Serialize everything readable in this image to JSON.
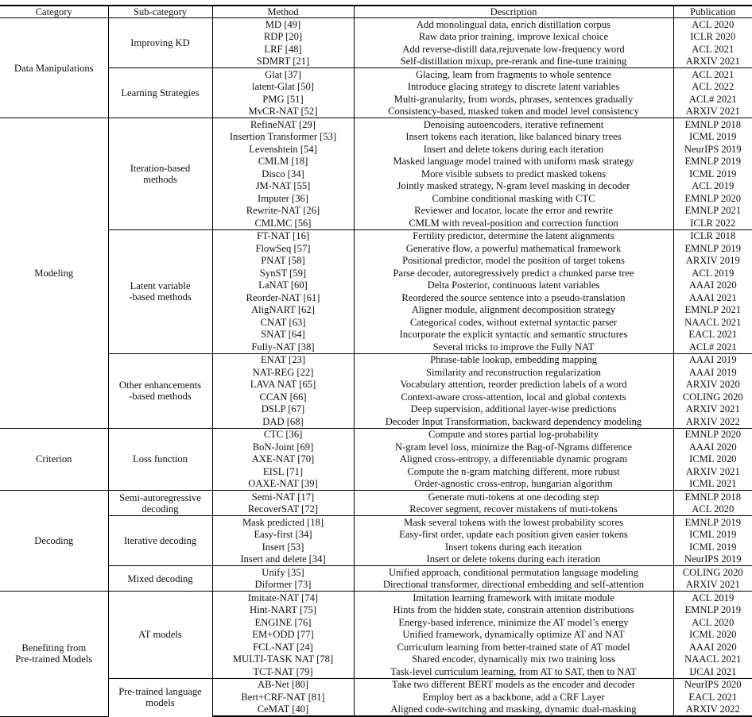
{
  "headers": {
    "category": "Category",
    "subcategory": "Sub-category",
    "method": "Method",
    "description": "Description",
    "publication": "Publication"
  },
  "categories": [
    {
      "name": "Data Manipulations",
      "subcategories": [
        {
          "name": "Improving KD",
          "methods": [
            {
              "method": "MD [49]",
              "description": "Add monolingual data, enrich distillation corpus",
              "publication": "ACL 2020"
            },
            {
              "method": "RDP [20]",
              "description": "Raw data prior training, improve lexical choice",
              "publication": "ICLR 2020"
            },
            {
              "method": "LRF [48]",
              "description": "Add reverse-distill data,rejuvenate low-frequency word",
              "publication": "ACL 2021"
            },
            {
              "method": "SDMRT [21]",
              "description": "Self-distillation mixup, pre-rerank and fine-tune training",
              "publication": "ARXIV 2021"
            }
          ]
        },
        {
          "name": "Learning Strategies",
          "methods": [
            {
              "method": "Glat [37]",
              "description": "Glacing, learn from fragments to whole sentence",
              "publication": "ACL 2021"
            },
            {
              "method": "latent-Glat [50]",
              "description": "Introduce glacing strategy to discrete latent variables",
              "publication": "ACL 2022"
            },
            {
              "method": "PMG [51]",
              "description": "Multi-granularity, from words, phrases, sentences gradually",
              "publication": "ACL# 2021"
            },
            {
              "method": "MvCR-NAT [52]",
              "description": "Consistency-based, masked token and model level consistency",
              "publication": "ARXIV 2021"
            }
          ]
        }
      ]
    },
    {
      "name": "Modeling",
      "subcategories": [
        {
          "name": "Iteration-based\nmethods",
          "methods": [
            {
              "method": "RefineNAT [29]",
              "description": "Denoising autoencoders, iterative refinement",
              "publication": "EMNLP 2018"
            },
            {
              "method": "Insertion Transformer [53]",
              "description": "Insert tokens each iteration, like balanced binary trees",
              "publication": "ICML 2019"
            },
            {
              "method": "Levenshtein [54]",
              "description": "Insert and delete tokens during each iteration",
              "publication": "NeurIPS 2019"
            },
            {
              "method": "CMLM [18]",
              "description": "Masked language model trained with uniform mask strategy",
              "publication": "EMNLP 2019"
            },
            {
              "method": "Disco [34]",
              "description": "More visible subsets to predict masked tokens",
              "publication": "ICML 2019"
            },
            {
              "method": "JM-NAT [55]",
              "description": "Jointly masked strategy, N-gram level masking in decoder",
              "publication": "ACL 2019"
            },
            {
              "method": "Imputer [36]",
              "description": "Combine conditional masking with CTC",
              "publication": "EMNLP 2020"
            },
            {
              "method": "Rewrite-NAT [26]",
              "description": "Reviewer and locator, locate the error and rewrite",
              "publication": "EMNLP 2021"
            },
            {
              "method": "CMLMC [56]",
              "description": "CMLM with reveal-position and correction function",
              "publication": "ICLR 2022"
            }
          ]
        },
        {
          "name": "Latent variable\n-based methods",
          "methods": [
            {
              "method": "FT-NAT [16]",
              "description": "Fertility predictor, determine the latent alignments",
              "publication": "ICLR 2018"
            },
            {
              "method": "FlowSeq [57]",
              "description": "Generative flow, a powerful mathematical framework",
              "publication": "EMNLP 2019"
            },
            {
              "method": "PNAT [58]",
              "description": "Positional predictor, model the position of target tokens",
              "publication": "ARXIV 2019"
            },
            {
              "method": "SynST [59]",
              "description": "Parse decoder, autoregressively predict a chunked parse tree",
              "publication": "ACL 2019"
            },
            {
              "method": "LaNAT [60]",
              "description": "Delta Posterior, continuous latent variables",
              "publication": "AAAI 2020"
            },
            {
              "method": "Reorder-NAT [61]",
              "description": "Reordered the source sentence into a pseudo-translation",
              "publication": "AAAI 2021"
            },
            {
              "method": "AligNART [62]",
              "description": "Aligner module, alignment decomposition strategy",
              "publication": "EMNLP 2021"
            },
            {
              "method": "CNAT [63]",
              "description": "Categorical codes, without external syntactic parser",
              "publication": "NAACL 2021"
            },
            {
              "method": "SNAT [64]",
              "description": "Incorporate the explicit syntactic and semantic structures",
              "publication": "EACL 2021"
            },
            {
              "method": "Fully-NAT [38]",
              "description": "Several tricks to improve the Fully NAT",
              "publication": "ACL# 2021"
            }
          ]
        },
        {
          "name": "Other enhancements\n-based methods",
          "methods": [
            {
              "method": "ENAT [23]",
              "description": "Phrase-table lookup, embedding mapping",
              "publication": "AAAI 2019"
            },
            {
              "method": "NAT-REG [22]",
              "description": "Similarity and reconstruction regularization",
              "publication": "AAAI 2019"
            },
            {
              "method": "LAVA NAT [65]",
              "description": "Vocabulary attention, reorder prediction labels of a word",
              "publication": "ARXIV 2020"
            },
            {
              "method": "CCAN [66]",
              "description": "Context-aware cross-attention, local and global contexts",
              "publication": "COLING 2020"
            },
            {
              "method": "DSLP [67]",
              "description": "Deep supervision, additional layer-wise predictions",
              "publication": "ARXIV 2021"
            },
            {
              "method": "DAD [68]",
              "description": "Decoder Input Transformation, backward dependency modeling",
              "publication": "ARXIV 2022"
            }
          ]
        }
      ]
    },
    {
      "name": "Criterion",
      "subcategories": [
        {
          "name": "Loss function",
          "methods": [
            {
              "method": "CTC [36]",
              "description": "Compute and stores partial log-probability",
              "publication": "EMNLP 2020"
            },
            {
              "method": "BoN-Joint [69]",
              "description": "N-gram level loss, minimize the Bag-of-Ngrams difference",
              "publication": "AAAI 2020"
            },
            {
              "method": "AXE-NAT [70]",
              "description": "Aligned cross-entropy, a differentiable dynamic program",
              "publication": "ICML 2020"
            },
            {
              "method": "EISL [71]",
              "description": "Compute the n-gram matching different, more rubust",
              "publication": "ARXIV 2021"
            },
            {
              "method": "OAXE-NAT [39]",
              "description": "Order-agnostic cross-entrop, hungarian algorithm",
              "publication": "ICML 2021"
            }
          ]
        }
      ]
    },
    {
      "name": "Decoding",
      "subcategories": [
        {
          "name": "Semi-autoregressive\ndecoding",
          "methods": [
            {
              "method": "Semi-NAT [17]",
              "description": "Generate muti-tokens at one decoding step",
              "publication": "EMNLP 2018"
            },
            {
              "method": "RecoverSAT [72]",
              "description": "Recover segment, recover mistakens of muti-tokens",
              "publication": "ACL 2020"
            }
          ]
        },
        {
          "name": "Iterative decoding",
          "methods": [
            {
              "method": "Mask predicted [18]",
              "description": "Mask several tokens with the lowest probability scores",
              "publication": "EMNLP 2019"
            },
            {
              "method": "Easy-first [34]",
              "description": "Easy-first order, update each position given easier tokens",
              "publication": "ICML 2019"
            },
            {
              "method": "Insert [53]",
              "description": "Insert tokens during each iteration",
              "publication": "ICML 2019"
            },
            {
              "method": "Insert and delete [34]",
              "description": "Insert or delete tokens during each iteration",
              "publication": "NeurIPS 2019"
            }
          ]
        },
        {
          "name": "Mixed decoding",
          "methods": [
            {
              "method": "Unify [35]",
              "description": "Unified approach, conditional permutation language modeling",
              "publication": "COLING 2020"
            },
            {
              "method": "Diformer [73]",
              "description": "Directional transformer, directional embedding and self-attention",
              "publication": "ARXIV 2021"
            }
          ]
        }
      ]
    },
    {
      "name": "Benefiting from\nPre-trained Models",
      "subcategories": [
        {
          "name": "AT models",
          "methods": [
            {
              "method": "Imitate-NAT [74]",
              "description": "Imitation learning framework with imitate module",
              "publication": "ACL 2019"
            },
            {
              "method": "Hint-NART [75]",
              "description": "Hints from the hidden state, constrain attention distributions",
              "publication": "EMNLP 2019"
            },
            {
              "method": "ENGINE [76]",
              "description": "Energy-based inference, minimize the AT model’s energy",
              "publication": "ACL 2020"
            },
            {
              "method": "EM+ODD [77]",
              "description": "Unified framework, dynamically optimize AT and NAT",
              "publication": "ICML 2020"
            },
            {
              "method": "FCL-NAT [24]",
              "description": "Curriculum learning from better-trained state of AT model",
              "publication": "AAAI 2020"
            },
            {
              "method": "MULTI-TASK NAT [78]",
              "description": "Shared encoder, dynamically mix two training loss",
              "publication": "NAACL 2021"
            },
            {
              "method": "TCT-NAT [79]",
              "description": "Task-level curriculum learning, from AT to SAT, then to NAT",
              "publication": "IJCAI 2021"
            }
          ]
        },
        {
          "name": "Pre-trained language\nmodels",
          "methods": [
            {
              "method": "AB-Net [80]",
              "description": "Take two different BERT models as the encoder and decoder",
              "publication": "NeurIPS 2020"
            },
            {
              "method": "Bert+CRF-NAT [81]",
              "description": "Employ bert as a backbone, add a CRF Layer",
              "publication": "EACL 2021"
            },
            {
              "method": "CeMAT [40]",
              "description": "Aligned code-switching and masking, dynamic dual-masking",
              "publication": "ARXIV 2022"
            }
          ]
        }
      ]
    }
  ]
}
